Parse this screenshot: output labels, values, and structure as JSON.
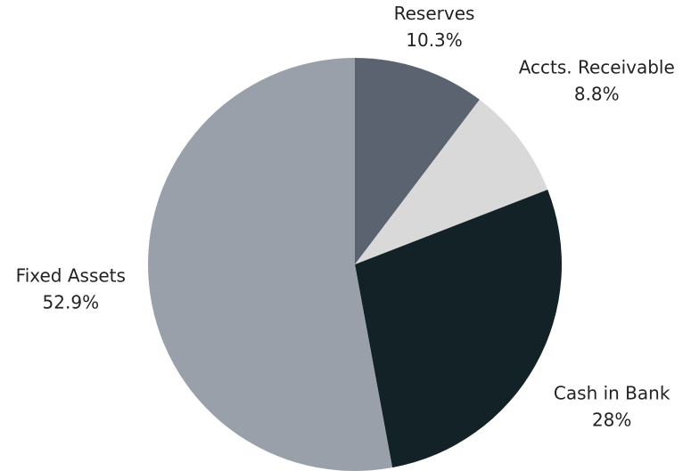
{
  "chart_data": {
    "type": "pie",
    "categories": [
      "Reserves",
      "Accts. Receivable",
      "Cash in Bank",
      "Fixed Assets"
    ],
    "values": [
      10.3,
      8.8,
      28,
      52.9
    ],
    "value_labels": [
      "10.3%",
      "8.8%",
      "28%",
      "52.9%"
    ],
    "colors": [
      "#5c6370",
      "#d9d9d9",
      "#132226",
      "#9aa0aa"
    ]
  }
}
